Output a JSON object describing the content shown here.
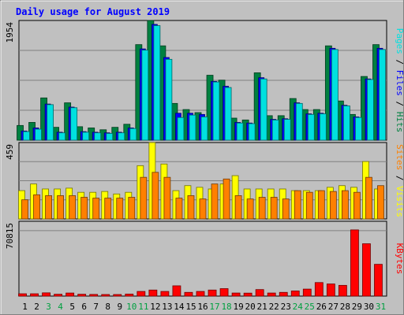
{
  "chart_data": {
    "type": "bar",
    "title": "Daily usage for August 2019",
    "days": [
      "1",
      "2",
      "3",
      "4",
      "5",
      "6",
      "7",
      "8",
      "9",
      "10",
      "11",
      "12",
      "13",
      "14",
      "15",
      "16",
      "17",
      "18",
      "19",
      "20",
      "21",
      "22",
      "23",
      "24",
      "25",
      "26",
      "27",
      "28",
      "29",
      "30",
      "31"
    ],
    "weekend_days": [
      "3",
      "4",
      "10",
      "11",
      "17",
      "18",
      "24",
      "25",
      "31"
    ],
    "panels": [
      {
        "id": "hits-files-pages",
        "max_label": "1954",
        "ylim": [
          0,
          1954
        ],
        "side_label_parts": [
          {
            "text": "Pages",
            "color": "#00e0e0"
          },
          {
            "text": " / ",
            "color": "#000000"
          },
          {
            "text": "Files",
            "color": "#0000ff"
          },
          {
            "text": " / ",
            "color": "#000000"
          },
          {
            "text": "Hits",
            "color": "#008040"
          }
        ],
        "series": [
          {
            "name": "Hits",
            "color": "#008040",
            "values": [
              240,
              290,
              690,
              210,
              610,
              220,
              200,
              170,
              210,
              260,
              1560,
              1954,
              1540,
              600,
              500,
              450,
              1060,
              980,
              360,
              330,
              1100,
              400,
              400,
              680,
              500,
              500,
              1540,
              640,
              420,
              1040,
              1560
            ]
          },
          {
            "name": "Files",
            "color": "#0000ff",
            "values": [
              150,
              200,
              590,
              130,
              540,
              140,
              130,
              120,
              130,
              200,
              1490,
              1890,
              1350,
              440,
              440,
              420,
              960,
              880,
              290,
              280,
              1020,
              340,
              350,
              610,
              430,
              440,
              1500,
              570,
              380,
              1000,
              1500
            ]
          },
          {
            "name": "Pages",
            "color": "#00e0e0",
            "values": [
              140,
              180,
              580,
              120,
              530,
              130,
              120,
              110,
              120,
              190,
              1470,
              1870,
              1320,
              370,
              410,
              380,
              950,
              860,
              280,
              270,
              1000,
              330,
              340,
              600,
              420,
              430,
              1480,
              560,
              370,
              990,
              1480
            ]
          }
        ]
      },
      {
        "id": "visits-sites",
        "max_label": "459",
        "ylim": [
          0,
          459
        ],
        "side_label_parts": [
          {
            "text": "Sites",
            "color": "#ff8000"
          },
          {
            "text": " / ",
            "color": "#000000"
          },
          {
            "text": "Visits",
            "color": "#ffff00"
          }
        ],
        "series": [
          {
            "name": "Visits",
            "color": "#ffff00",
            "values": [
              170,
              210,
              180,
              180,
              185,
              160,
              160,
              165,
              150,
              160,
              320,
              459,
              330,
              170,
              200,
              190,
              180,
              210,
              260,
              180,
              180,
              180,
              180,
              170,
              170,
              170,
              190,
              200,
              190,
              345,
              180
            ]
          },
          {
            "name": "Sites",
            "color": "#ff8000",
            "values": [
              115,
              145,
              140,
              140,
              140,
              130,
              125,
              125,
              125,
              130,
              250,
              280,
              250,
              125,
              140,
              120,
              210,
              240,
              140,
              120,
              130,
              130,
              120,
              170,
              160,
              170,
              165,
              170,
              160,
              250,
              200
            ]
          }
        ]
      },
      {
        "id": "kbytes",
        "max_label": "70815",
        "ylim": [
          0,
          80000
        ],
        "side_label_parts": [
          {
            "text": "KBytes",
            "color": "#ff0000"
          }
        ],
        "series": [
          {
            "name": "KBytes",
            "color": "#ff0000",
            "values": [
              2500,
              2500,
              3500,
              2000,
              3300,
              2000,
              1800,
              1700,
              1700,
              2200,
              5000,
              6500,
              5000,
              11000,
              4000,
              5000,
              6500,
              8000,
              3300,
              3200,
              7000,
              3300,
              4000,
              5500,
              7500,
              14500,
              13000,
              11500,
              70815,
              56000,
              34000
            ]
          }
        ]
      }
    ]
  }
}
